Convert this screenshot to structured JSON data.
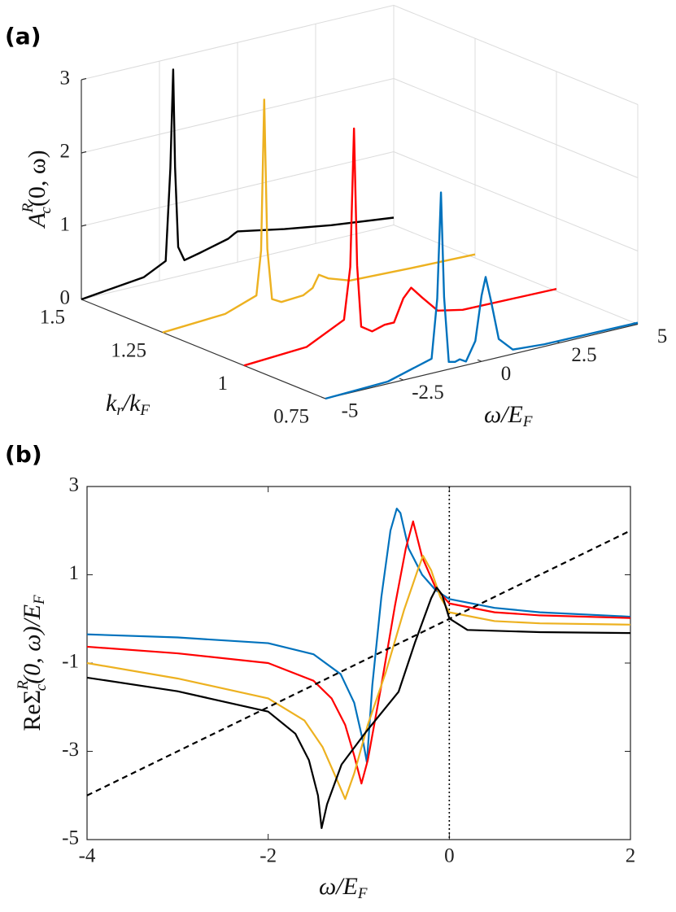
{
  "chart_data": [
    {
      "type": "line3d",
      "panel": "(a)",
      "xlabel": [
        "ω/E",
        "F"
      ],
      "ylabel": [
        "k",
        "r",
        "/k",
        "F"
      ],
      "zlabel": [
        "A",
        "R",
        "c",
        "(0, ω)"
      ],
      "xlim": [
        -5,
        5
      ],
      "xticks": [
        -5,
        -2.5,
        0,
        2.5,
        5
      ],
      "ylim": [
        0.75,
        1.5
      ],
      "yticks": [
        0.75,
        1,
        1.25,
        1.5
      ],
      "zlim": [
        0,
        3
      ],
      "zticks": [
        0,
        1,
        2,
        3
      ],
      "grid": true,
      "series": [
        {
          "k": 0.75,
          "color": "#0072bd",
          "x": [
            -5,
            -3,
            -1.6,
            -1.42,
            -1.3,
            -1.2,
            -1.05,
            -0.85,
            -0.7,
            -0.5,
            -0.2,
            0,
            0.13,
            0.3,
            0.55,
            1,
            2,
            5
          ],
          "values": [
            0,
            0.03,
            0.2,
            1,
            2.44,
            1,
            0.1,
            0.08,
            0.1,
            0.05,
            0.3,
            0.9,
            1.14,
            0.8,
            0.25,
            0.06,
            0.03,
            0.02
          ]
        },
        {
          "k": 1,
          "color": "#ff0000",
          "x": [
            -5,
            -3,
            -1.8,
            -1.6,
            -1.48,
            -1.38,
            -1.25,
            -0.9,
            -0.5,
            -0.2,
            0.1,
            0.35,
            0.7,
            1.2,
            2,
            5
          ],
          "values": [
            0,
            0.05,
            0.3,
            1,
            2.88,
            1,
            0.15,
            0.05,
            0.1,
            0.1,
            0.4,
            0.52,
            0.35,
            0.12,
            0.05,
            0.03
          ]
        },
        {
          "k": 1.25,
          "color": "#edb120",
          "x": [
            -5,
            -3,
            -2,
            -1.85,
            -1.75,
            -1.65,
            -1.5,
            -1.2,
            -0.5,
            -0.2,
            0,
            0.3,
            1,
            3,
            5
          ],
          "values": [
            0,
            0.05,
            0.2,
            0.8,
            2.85,
            0.8,
            0.1,
            0.03,
            0.05,
            0.12,
            0.28,
            0.2,
            0.1,
            0.07,
            0.05
          ]
        },
        {
          "k": 1.5,
          "color": "#000000",
          "x": [
            -5,
            -3,
            -2.3,
            -2.15,
            -2.06,
            -2,
            -1.9,
            -1.7,
            -1.2,
            -0.3,
            -0.1,
            0,
            0.5,
            1.5,
            3,
            5
          ],
          "values": [
            0,
            0.1,
            0.25,
            1.5,
            2.84,
            1.5,
            0.4,
            0.2,
            0.25,
            0.35,
            0.4,
            0.42,
            0.38,
            0.3,
            0.2,
            0.1
          ]
        }
      ]
    },
    {
      "type": "line",
      "panel": "(b)",
      "xlabel": [
        "ω/E",
        "F"
      ],
      "ylabel": [
        "ReΣ",
        "R",
        "c",
        "(0, ω)/E",
        "F"
      ],
      "xlim": [
        -4,
        2
      ],
      "xticks": [
        -4,
        -2,
        0,
        2
      ],
      "ylim": [
        -5,
        3
      ],
      "yticks": [
        -5,
        -3,
        -1,
        1,
        3
      ],
      "vline": {
        "x": 0,
        "style": "dotted"
      },
      "series": [
        {
          "color": "#0072bd",
          "x": [
            -4,
            -3,
            -2,
            -1.5,
            -1.2,
            -1.05,
            -0.95,
            -0.91,
            -0.85,
            -0.75,
            -0.65,
            -0.58,
            -0.54,
            -0.45,
            -0.3,
            -0.15,
            0,
            0.5,
            1,
            2
          ],
          "values": [
            -0.35,
            -0.42,
            -0.55,
            -0.8,
            -1.25,
            -1.9,
            -2.8,
            -3.25,
            -1.5,
            0.5,
            2.0,
            2.5,
            2.4,
            1.6,
            1.0,
            0.65,
            0.45,
            0.25,
            0.15,
            0.05
          ]
        },
        {
          "color": "#ff0000",
          "x": [
            -4,
            -3,
            -2,
            -1.5,
            -1.3,
            -1.15,
            -1.05,
            -0.97,
            -0.9,
            -0.75,
            -0.6,
            -0.48,
            -0.4,
            -0.3,
            -0.15,
            0,
            0.5,
            1,
            2
          ],
          "values": [
            -0.63,
            -0.78,
            -1.0,
            -1.4,
            -1.8,
            -2.4,
            -3.1,
            -3.73,
            -3.2,
            -1.5,
            0.3,
            1.6,
            2.21,
            1.4,
            0.7,
            0.35,
            0.15,
            0.08,
            0.02
          ]
        },
        {
          "color": "#edb120",
          "x": [
            -4,
            -3,
            -2,
            -1.6,
            -1.4,
            -1.25,
            -1.15,
            -1.05,
            -0.9,
            -0.7,
            -0.5,
            -0.35,
            -0.29,
            -0.2,
            -0.1,
            0,
            0.5,
            1,
            2
          ],
          "values": [
            -1.0,
            -1.35,
            -1.8,
            -2.3,
            -2.9,
            -3.6,
            -4.08,
            -3.5,
            -2.4,
            -1.2,
            0.2,
            1.1,
            1.43,
            1.1,
            0.5,
            0.15,
            -0.05,
            -0.1,
            -0.13
          ]
        },
        {
          "color": "#000000",
          "x": [
            -4,
            -3,
            -2,
            -1.7,
            -1.55,
            -1.45,
            -1.41,
            -1.35,
            -1.19,
            -0.92,
            -0.56,
            -0.38,
            -0.2,
            -0.14,
            -0.08,
            0,
            0.2,
            1,
            2
          ],
          "values": [
            -1.33,
            -1.64,
            -2.1,
            -2.6,
            -3.2,
            -4.0,
            -4.74,
            -4.2,
            -3.3,
            -2.56,
            -1.65,
            -0.54,
            0.47,
            0.71,
            0.55,
            0.01,
            -0.25,
            -0.3,
            -0.32
          ]
        },
        {
          "color": "#000000",
          "dash": "dashed",
          "x": [
            -4,
            2
          ],
          "values": [
            -4,
            2
          ]
        }
      ]
    }
  ]
}
